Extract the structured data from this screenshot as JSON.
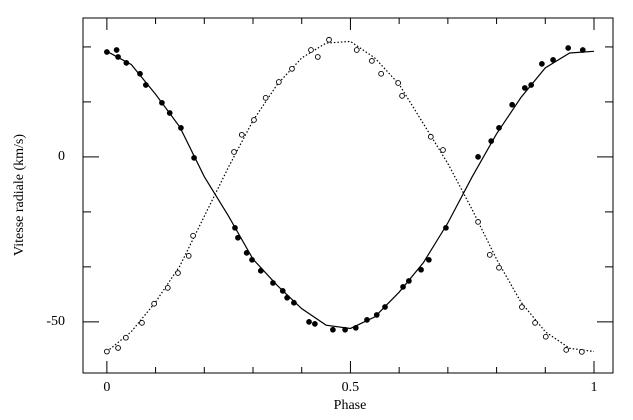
{
  "chart_data": {
    "type": "scatter",
    "xlabel": "Phase",
    "ylabel": "Vitesse radiale (km/s)",
    "xlim": [
      -0.049,
      1.039
    ],
    "ylim": [
      -65.5,
      42.1
    ],
    "xticks": [
      0,
      0.5,
      1
    ],
    "yticks": [
      -50,
      0
    ],
    "xminor": [
      0.1,
      0.2,
      0.3,
      0.4,
      0.6,
      0.7,
      0.8,
      0.9
    ],
    "yminor": [
      -33.33,
      -16.67,
      16.67,
      33.33
    ],
    "series": [
      {
        "color": "#000",
        "fill": "#000",
        "x": [
          0,
          0.02,
          0.023,
          0.04,
          0.068,
          0.08,
          0.113,
          0.129,
          0.152,
          0.179,
          0.263,
          0.269,
          0.287,
          0.298,
          0.316,
          0.341,
          0.361,
          0.37,
          0.384,
          0.415,
          0.427,
          0.464,
          0.489,
          0.511,
          0.534,
          0.554,
          0.571,
          0.608,
          0.62,
          0.645,
          0.661,
          0.696,
          0.762,
          0.789,
          0.805,
          0.832,
          0.858,
          0.871,
          0.893,
          0.916,
          0.947,
          0.977
        ],
        "values": [
          31.8,
          32.4,
          30.3,
          28.5,
          25.2,
          21.8,
          16.4,
          13.3,
          8.8,
          -0.3,
          -21.5,
          -24.5,
          -29.1,
          -31.2,
          -34.5,
          -38.2,
          -40.6,
          -42.7,
          -44.2,
          -50,
          -50.6,
          -52.4,
          -52.4,
          -51.8,
          -49.4,
          -47.9,
          -45.5,
          -39.4,
          -37.6,
          -34.2,
          -31.2,
          -21.5,
          0,
          4.8,
          8.8,
          15.8,
          20.9,
          21.8,
          28.2,
          29.4,
          33,
          32.4
        ]
      },
      {
        "color": "#000",
        "fill": "#fff",
        "x": [
          0,
          0.023,
          0.039,
          0.072,
          0.097,
          0.125,
          0.146,
          0.168,
          0.177,
          0.261,
          0.277,
          0.302,
          0.326,
          0.353,
          0.38,
          0.419,
          0.433,
          0.456,
          0.513,
          0.544,
          0.563,
          0.598,
          0.606,
          0.665,
          0.69,
          0.762,
          0.786,
          0.805,
          0.852,
          0.879,
          0.901,
          0.943,
          0.975
        ],
        "values": [
          -59,
          -57.9,
          -54.8,
          -50.3,
          -44.5,
          -39.7,
          -35.2,
          -30,
          -23.9,
          1.5,
          6.7,
          11.2,
          17.9,
          22.7,
          26.7,
          32.4,
          30.3,
          35.5,
          32.4,
          29.1,
          25.2,
          22.4,
          18.5,
          6.1,
          2.1,
          -19.7,
          -29.7,
          -33.6,
          -45.5,
          -50.3,
          -54.5,
          -58.5,
          -59.1
        ]
      }
    ],
    "curves": [
      {
        "color": "#000",
        "dash": "none",
        "x": [
          0,
          0.05,
          0.1,
          0.15,
          0.2,
          0.25,
          0.3,
          0.35,
          0.4,
          0.45,
          0.5,
          0.55,
          0.6,
          0.65,
          0.7,
          0.75,
          0.8,
          0.85,
          0.9,
          0.95,
          1
        ],
        "values": [
          32,
          28,
          19,
          9,
          -6,
          -18,
          -31,
          -39,
          -46,
          -51,
          -52,
          -48.5,
          -41,
          -32,
          -20,
          -6,
          7,
          18,
          27,
          31.5,
          32
        ]
      },
      {
        "color": "#000",
        "dash": "1.5 2",
        "x": [
          0,
          0.05,
          0.1,
          0.15,
          0.2,
          0.25,
          0.3,
          0.35,
          0.4,
          0.45,
          0.5,
          0.55,
          0.6,
          0.65,
          0.7,
          0.75,
          0.8,
          0.85,
          0.9,
          0.95,
          1
        ],
        "values": [
          -59,
          -53,
          -44,
          -33,
          -18,
          -3,
          11,
          22,
          30,
          34.5,
          35,
          30,
          22,
          10,
          -2,
          -16,
          -31,
          -44,
          -53,
          -58,
          -59
        ]
      }
    ]
  }
}
